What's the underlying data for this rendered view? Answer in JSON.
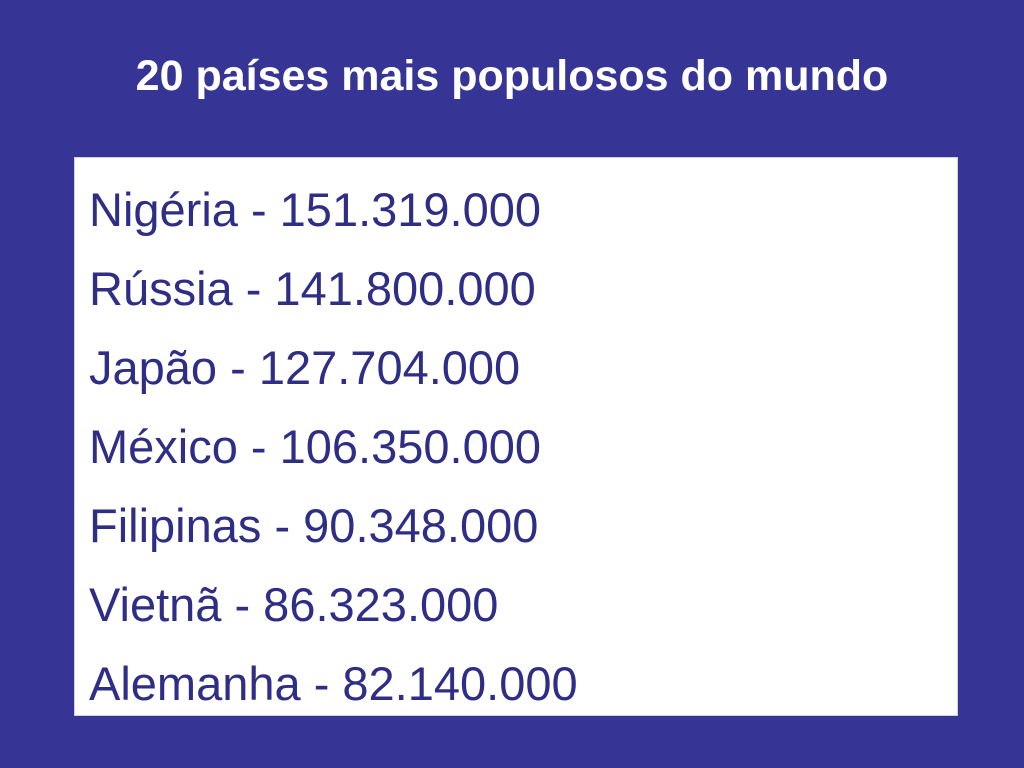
{
  "slide": {
    "title": "20 países mais populosos do mundo",
    "countries": [
      {
        "text": "Nigéria - 151.319.000"
      },
      {
        "text": "Rússia - 141.800.000"
      },
      {
        "text": "Japão - 127.704.000"
      },
      {
        "text": "México - 106.350.000"
      },
      {
        "text": "Filipinas - 90.348.000"
      },
      {
        "text": "Vietnã - 86.323.000"
      },
      {
        "text": "Alemanha - 82.140.000"
      }
    ]
  },
  "colors": {
    "background": "#363596",
    "title_text": "#ffffff",
    "box_background": "#ffffff",
    "list_text": "#2f2e86"
  }
}
